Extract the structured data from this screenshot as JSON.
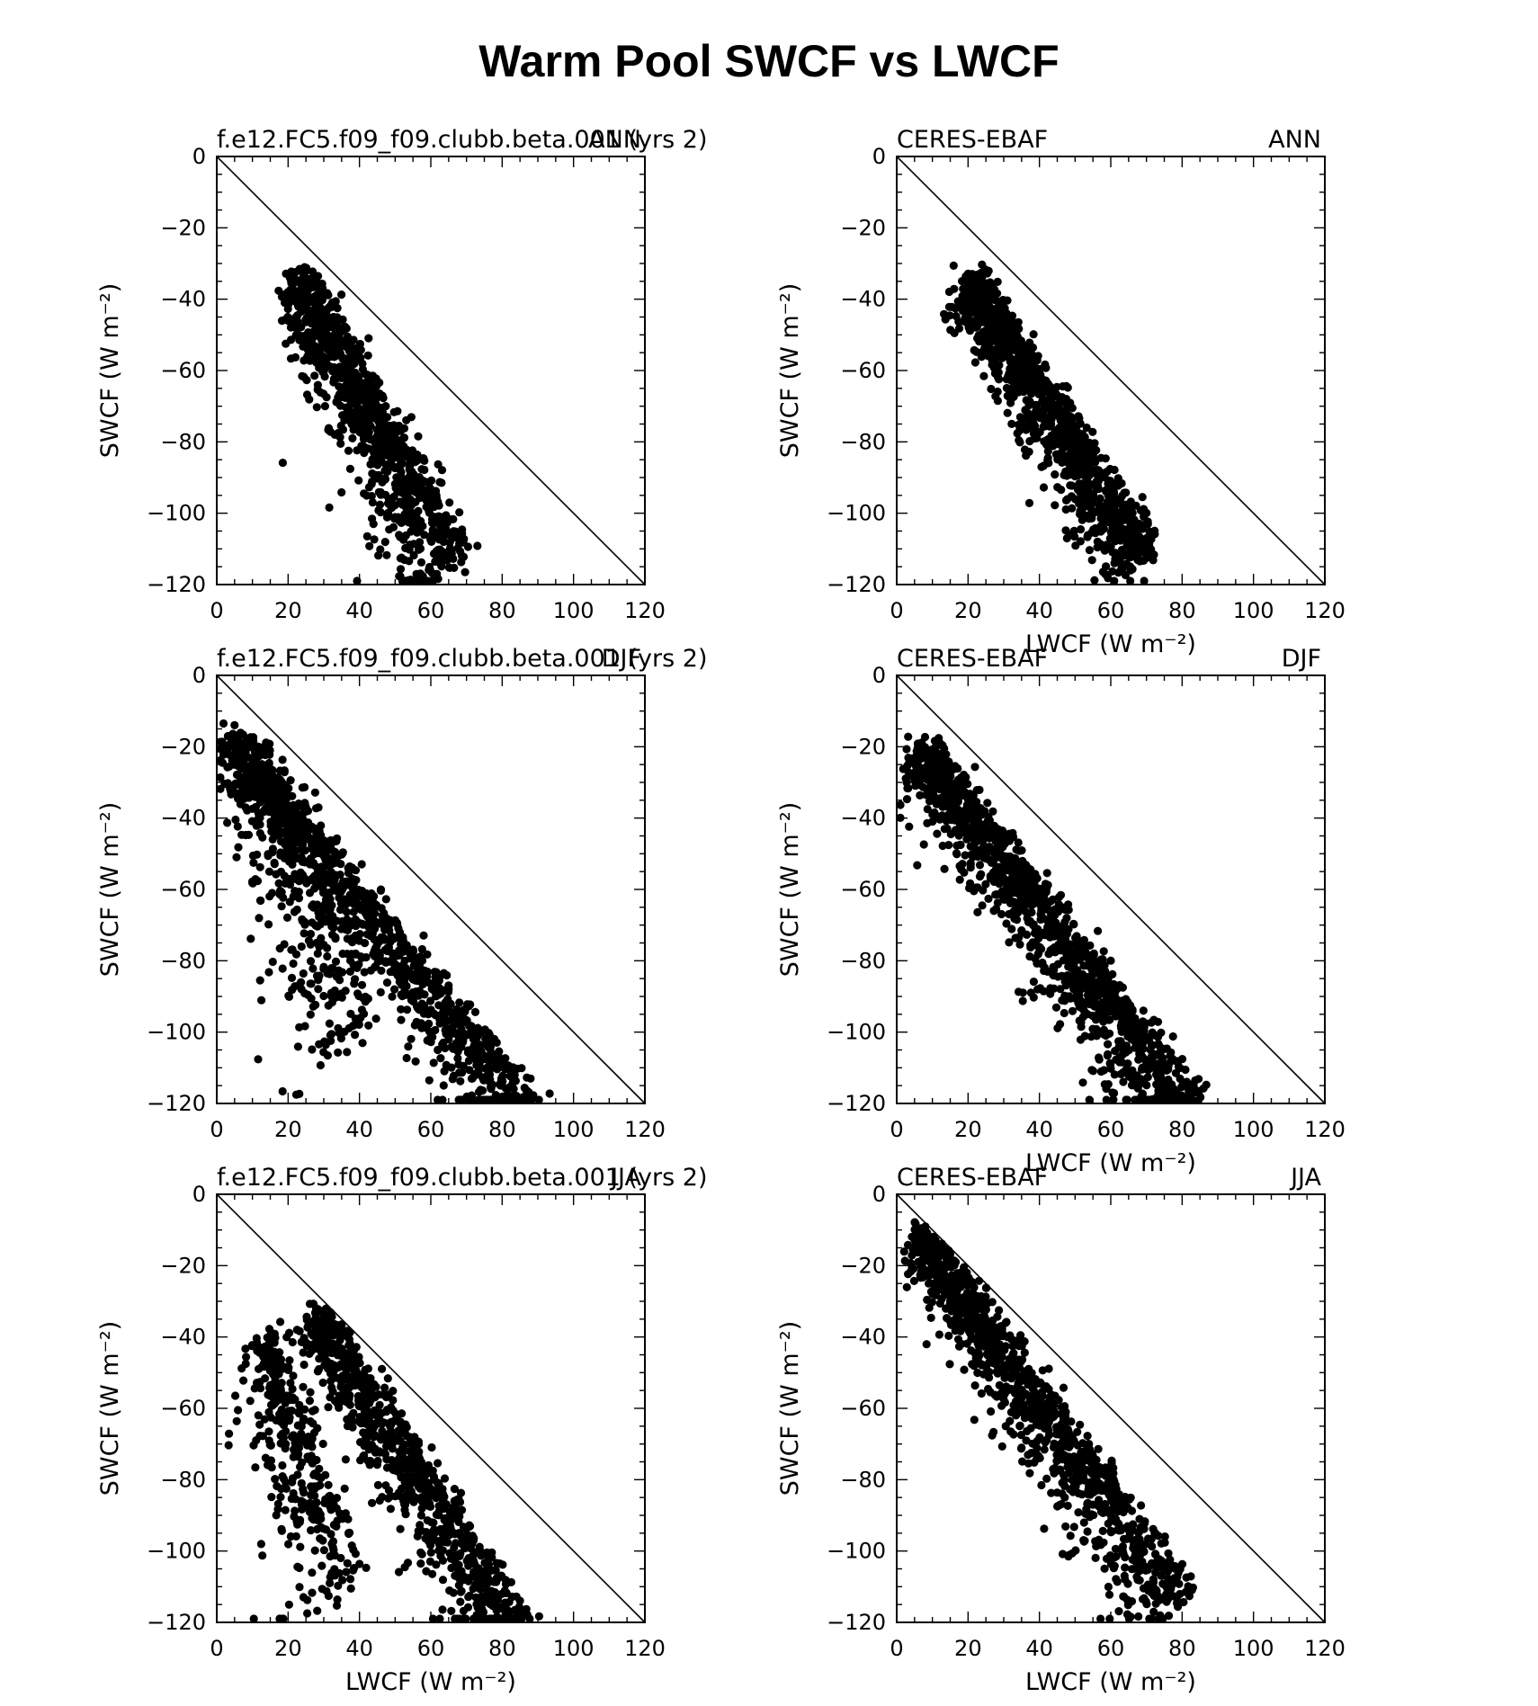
{
  "figure_title": "Warm Pool SWCF vs LWCF",
  "colors": {
    "points": "#000000",
    "axes": "#000000",
    "background": "#ffffff"
  },
  "chart_data": [
    {
      "type": "scatter",
      "panel": "model-ann",
      "left_label": "f.e12.FC5.f09_f09.clubb.beta.001 (yrs 2)",
      "right_label": "ANN",
      "xlabel": "LWCF (W m⁻²)",
      "ylabel": "SWCF (W m⁻²)",
      "xlim": [
        0,
        120
      ],
      "ylim": [
        -120,
        0
      ],
      "xticks": [
        0,
        20,
        40,
        60,
        80,
        100,
        120
      ],
      "yticks": [
        0,
        -20,
        -40,
        -60,
        -80,
        -100,
        -120
      ],
      "reference_line": "y = -x",
      "n_points": 1000,
      "clusters": [
        {
          "x": [
            25,
            70
          ],
          "y": [
            -32,
            -110
          ],
          "weight": 1.0,
          "spread": 12
        }
      ]
    },
    {
      "type": "scatter",
      "panel": "obs-ann",
      "left_label": "CERES-EBAF",
      "right_label": "ANN",
      "xlabel": "LWCF (W m⁻²)",
      "ylabel": "SWCF (W m⁻²)",
      "xlim": [
        0,
        120
      ],
      "ylim": [
        -120,
        0
      ],
      "xticks": [
        0,
        20,
        40,
        60,
        80,
        100,
        120
      ],
      "yticks": [
        0,
        -20,
        -40,
        -60,
        -80,
        -100,
        -120
      ],
      "reference_line": "y = -x",
      "n_points": 1100,
      "clusters": [
        {
          "x": [
            22,
            72
          ],
          "y": [
            -33,
            -108
          ],
          "weight": 1.0,
          "spread": 10
        }
      ]
    },
    {
      "type": "scatter",
      "panel": "model-djf",
      "left_label": "f.e12.FC5.f09_f09.clubb.beta.001 (yrs 2)",
      "right_label": "DJF",
      "xlabel": "LWCF (W m⁻²)",
      "ylabel": "SWCF (W m⁻²)",
      "xlim": [
        0,
        120
      ],
      "ylim": [
        -120,
        0
      ],
      "xticks": [
        0,
        20,
        40,
        60,
        80,
        100,
        120
      ],
      "yticks": [
        0,
        -20,
        -40,
        -60,
        -80,
        -100,
        -120
      ],
      "reference_line": "y = -x",
      "n_points": 1400,
      "clusters": [
        {
          "x": [
            6,
            89
          ],
          "y": [
            -16,
            -118
          ],
          "weight": 0.75,
          "spread": 10
        },
        {
          "x": [
            13,
            45
          ],
          "y": [
            -20,
            -94
          ],
          "weight": 0.25,
          "spread": 18
        }
      ]
    },
    {
      "type": "scatter",
      "panel": "obs-djf",
      "left_label": "CERES-EBAF",
      "right_label": "DJF",
      "xlabel": "LWCF (W m⁻²)",
      "ylabel": "SWCF (W m⁻²)",
      "xlim": [
        0,
        120
      ],
      "ylim": [
        -120,
        0
      ],
      "xticks": [
        0,
        20,
        40,
        60,
        80,
        100,
        120
      ],
      "yticks": [
        0,
        -20,
        -40,
        -60,
        -80,
        -100,
        -120
      ],
      "reference_line": "y = -x",
      "n_points": 1300,
      "clusters": [
        {
          "x": [
            9,
            86
          ],
          "y": [
            -19,
            -118
          ],
          "weight": 1.0,
          "spread": 12
        }
      ]
    },
    {
      "type": "scatter",
      "panel": "model-jja",
      "left_label": "f.e12.FC5.f09_f09.clubb.beta.001 (yrs 2)",
      "right_label": "JJA",
      "xlabel": "LWCF (W m⁻²)",
      "ylabel": "SWCF (W m⁻²)",
      "xlim": [
        0,
        120
      ],
      "ylim": [
        -120,
        0
      ],
      "xticks": [
        0,
        20,
        40,
        60,
        80,
        100,
        120
      ],
      "yticks": [
        0,
        -20,
        -40,
        -60,
        -80,
        -100,
        -120
      ],
      "reference_line": "y = -x",
      "n_points": 1200,
      "clusters": [
        {
          "x": [
            30,
            87
          ],
          "y": [
            -32,
            -119
          ],
          "weight": 0.7,
          "spread": 11
        },
        {
          "x": [
            16,
            40
          ],
          "y": [
            -37,
            -105
          ],
          "weight": 0.3,
          "spread": 16
        }
      ]
    },
    {
      "type": "scatter",
      "panel": "obs-jja",
      "left_label": "CERES-EBAF",
      "right_label": "JJA",
      "xlabel": "LWCF (W m⁻²)",
      "ylabel": "SWCF (W m⁻²)",
      "xlim": [
        0,
        120
      ],
      "ylim": [
        -120,
        0
      ],
      "xticks": [
        0,
        20,
        40,
        60,
        80,
        100,
        120
      ],
      "yticks": [
        0,
        -20,
        -40,
        -60,
        -80,
        -100,
        -120
      ],
      "reference_line": "y = -x",
      "n_points": 1100,
      "clusters": [
        {
          "x": [
            8,
            83
          ],
          "y": [
            -9,
            -111
          ],
          "weight": 1.0,
          "spread": 11
        }
      ]
    }
  ]
}
